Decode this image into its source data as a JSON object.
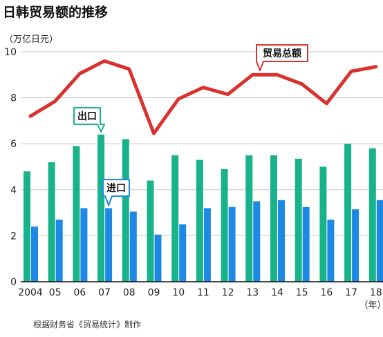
{
  "chart_data": {
    "type": "bar",
    "title": "日韩贸易额的推移",
    "ylabel": "（万亿日元）",
    "xlabel": "（年）",
    "source": "根据财务省《贸易统计》制作",
    "categories": [
      "2004",
      "05",
      "06",
      "07",
      "08",
      "09",
      "10",
      "11",
      "12",
      "13",
      "14",
      "15",
      "16",
      "17",
      "18"
    ],
    "ylim": [
      0,
      10
    ],
    "yticks": [
      "0",
      "2",
      "4",
      "6",
      "8",
      "10"
    ],
    "grid": true,
    "series": [
      {
        "name": "出口",
        "type": "bar",
        "color": "#18b38a",
        "values": [
          4.8,
          5.2,
          5.9,
          6.4,
          6.2,
          4.4,
          5.5,
          5.3,
          4.9,
          5.5,
          5.5,
          5.35,
          5.0,
          6.0,
          5.8
        ]
      },
      {
        "name": "进口",
        "type": "bar",
        "color": "#1e88e5",
        "values": [
          2.4,
          2.7,
          3.2,
          3.2,
          3.05,
          2.05,
          2.5,
          3.2,
          3.25,
          3.5,
          3.55,
          3.25,
          2.7,
          3.15,
          3.55
        ]
      },
      {
        "name": "贸易总额",
        "type": "line",
        "color": "#d9322e",
        "values": [
          7.2,
          7.85,
          9.05,
          9.6,
          9.25,
          6.45,
          7.95,
          8.45,
          8.15,
          9.0,
          9.0,
          8.6,
          7.75,
          9.15,
          9.35
        ]
      }
    ]
  }
}
